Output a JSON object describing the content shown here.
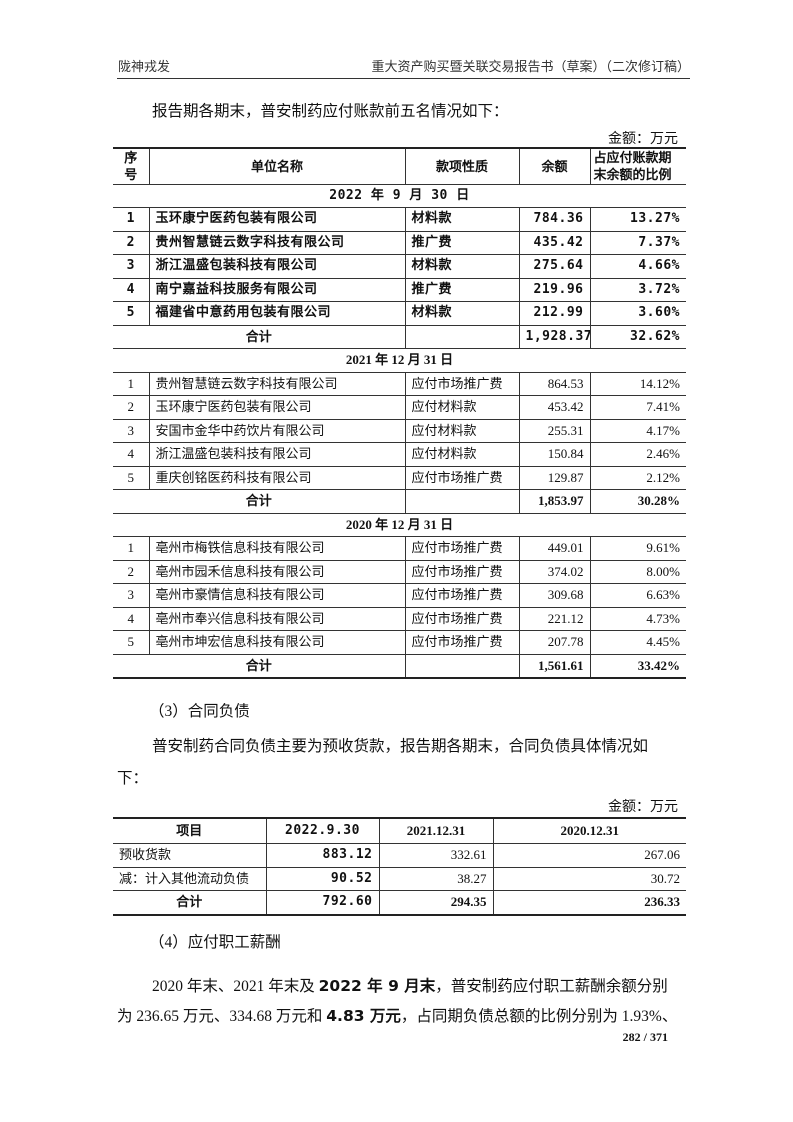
{
  "header": {
    "left": "陇神戎发",
    "right": "重大资产购买暨关联交易报告书（草案）（二次修订稿）"
  },
  "intro": "报告期各期末，普安制药应付账款前五名情况如下：",
  "table1": {
    "unit": "金额：万元",
    "headers": [
      "序号",
      "单位名称",
      "款项性质",
      "余额",
      "占应付账款期末余额的比例"
    ],
    "sections": [
      {
        "title": "2022 年 9 月 30 日",
        "rows": [
          [
            "1",
            "玉环康宁医药包装有限公司",
            "材料款",
            "784.36",
            "13.27%"
          ],
          [
            "2",
            "贵州智慧链云数字科技有限公司",
            "推广费",
            "435.42",
            "7.37%"
          ],
          [
            "3",
            "浙江温盛包装科技有限公司",
            "材料款",
            "275.64",
            "4.66%"
          ],
          [
            "4",
            "南宁嘉益科技服务有限公司",
            "推广费",
            "219.96",
            "3.72%"
          ],
          [
            "5",
            "福建省中意药用包装有限公司",
            "材料款",
            "212.99",
            "3.60%"
          ]
        ],
        "total": {
          "label": "合计",
          "amount": "1,928.37",
          "ratio": "32.62%"
        }
      },
      {
        "title": "2021 年 12 月 31 日",
        "rows": [
          [
            "1",
            "贵州智慧链云数字科技有限公司",
            "应付市场推广费",
            "864.53",
            "14.12%"
          ],
          [
            "2",
            "玉环康宁医药包装有限公司",
            "应付材料款",
            "453.42",
            "7.41%"
          ],
          [
            "3",
            "安国市金华中药饮片有限公司",
            "应付材料款",
            "255.31",
            "4.17%"
          ],
          [
            "4",
            "浙江温盛包装科技有限公司",
            "应付材料款",
            "150.84",
            "2.46%"
          ],
          [
            "5",
            "重庆创铭医药科技有限公司",
            "应付市场推广费",
            "129.87",
            "2.12%"
          ]
        ],
        "total": {
          "label": "合计",
          "amount": "1,853.97",
          "ratio": "30.28%"
        }
      },
      {
        "title": "2020 年 12 月 31 日",
        "rows": [
          [
            "1",
            "亳州市梅铁信息科技有限公司",
            "应付市场推广费",
            "449.01",
            "9.61%"
          ],
          [
            "2",
            "亳州市园禾信息科技有限公司",
            "应付市场推广费",
            "374.02",
            "8.00%"
          ],
          [
            "3",
            "亳州市豪情信息科技有限公司",
            "应付市场推广费",
            "309.68",
            "6.63%"
          ],
          [
            "4",
            "亳州市奉兴信息科技有限公司",
            "应付市场推广费",
            "221.12",
            "4.73%"
          ],
          [
            "5",
            "亳州市坤宏信息科技有限公司",
            "应付市场推广费",
            "207.78",
            "4.45%"
          ]
        ],
        "total": {
          "label": "合计",
          "amount": "1,561.61",
          "ratio": "33.42%"
        }
      }
    ]
  },
  "section3": {
    "heading": "（3）合同负债",
    "para_line1": "普安制药合同负债主要为预收货款，报告期各期末，合同负债具体情况如",
    "para_line2": "下：",
    "unit": "金额：万元",
    "headers": [
      "项目",
      "2022.9.30",
      "2021.12.31",
      "2020.12.31"
    ],
    "rows": [
      [
        "预收货款",
        "883.12",
        "332.61",
        "267.06"
      ],
      [
        "减：计入其他流动负债",
        "90.52",
        "38.27",
        "30.72"
      ]
    ],
    "total": [
      "合计",
      "792.60",
      "294.35",
      "236.33"
    ]
  },
  "section4": {
    "heading": "（4）应付职工薪酬",
    "p1a": "2020 年末、2021 年末及 ",
    "p1b": "2022 年 9 月末",
    "p1c": "，普安制药应付职工薪酬余额分别",
    "p2a": "为 236.65 万元、334.68 万元和 ",
    "p2b": "4.83 万元",
    "p2c": "，占同期负债总额的比例分别为 1.93%、"
  },
  "page_number": "282 / 371"
}
